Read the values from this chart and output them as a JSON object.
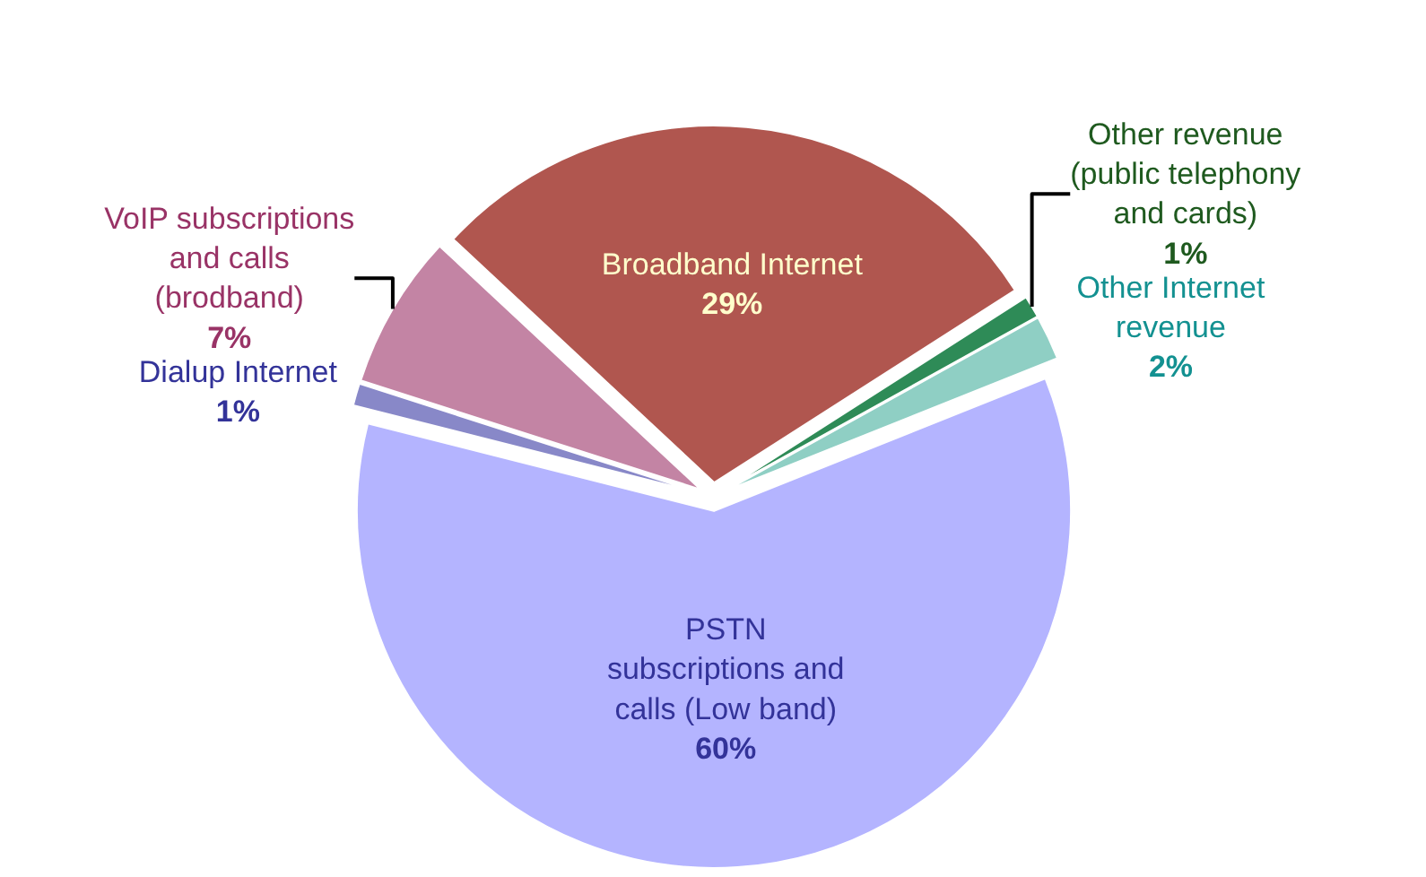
{
  "chart_data": {
    "type": "pie",
    "categories": [
      "Broadband Internet",
      "Other revenue\n(public telephony\nand cards)",
      "Other Internet\nrevenue",
      "PSTN\nsubscriptions and\ncalls (Low band)",
      "Dialup Internet",
      "VoIP subscriptions\nand calls\n(brodband)"
    ],
    "values": [
      29,
      1,
      2,
      60,
      1,
      7
    ],
    "value_labels": [
      "29%",
      "1%",
      "2%",
      "60%",
      "1%",
      "7%"
    ],
    "colors": [
      "#b0564f",
      "#2e8b57",
      "#8fcfc4",
      "#b4b4ff",
      "#8888c8",
      "#c384a4"
    ],
    "legend": false
  }
}
